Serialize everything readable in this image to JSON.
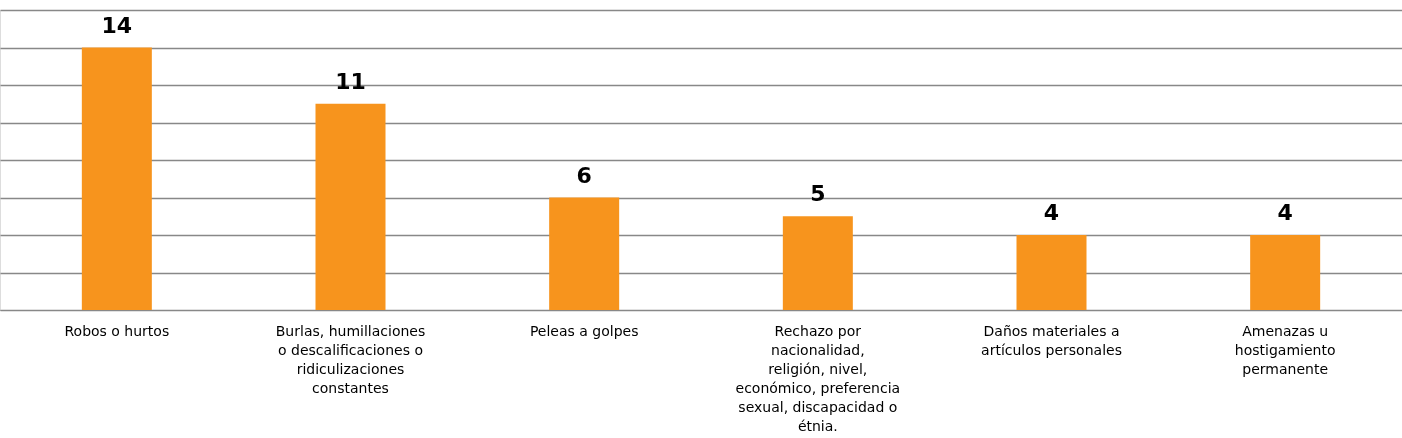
{
  "chart_data": {
    "type": "bar",
    "categories": [
      "Robos o hurtos",
      "Burlas, humillaciones o descalificaciones o ridiculizaciones constantes",
      "Peleas a golpes",
      "Rechazo por nacionalidad, religión, nivel, económico, preferencia sexual, discapacidad o étnia.",
      "Daños materiales a artículos personales",
      "Amenazas u hostigamiento permanente"
    ],
    "values": [
      14,
      11,
      6,
      5,
      4,
      4
    ],
    "color": "#f7941d",
    "ylim": [
      0,
      16
    ],
    "grid": "y",
    "tick_labels": "x",
    "data_labels": true
  }
}
